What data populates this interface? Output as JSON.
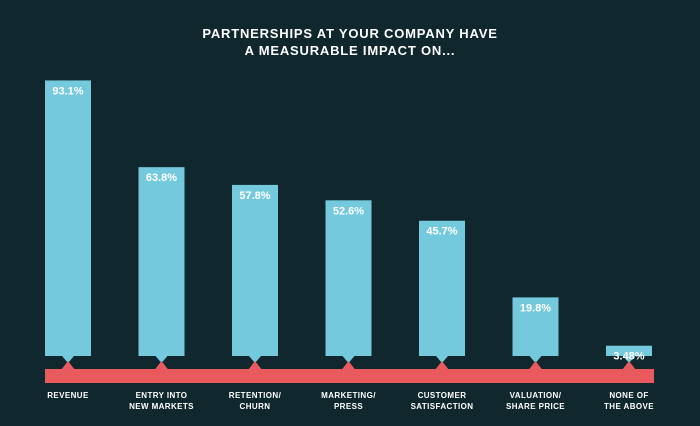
{
  "chart_data": {
    "type": "bar",
    "title_lines": [
      "PARTNERSHIPS AT YOUR COMPANY HAVE",
      "A MEASURABLE IMPACT ON..."
    ],
    "categories": [
      [
        "REVENUE"
      ],
      [
        "ENTRY INTO",
        "NEW MARKETS"
      ],
      [
        "RETENTION/",
        "CHURN"
      ],
      [
        "MARKETING/",
        "PRESS"
      ],
      [
        "CUSTOMER",
        "SATISFACTION"
      ],
      [
        "VALUATION/",
        "SHARE PRICE"
      ],
      [
        "NONE OF",
        "THE ABOVE"
      ]
    ],
    "values": [
      93.1,
      63.8,
      57.8,
      52.6,
      45.7,
      19.8,
      3.48
    ],
    "value_labels": [
      "93.1%",
      "63.8%",
      "57.8%",
      "52.6%",
      "45.7%",
      "19.8%",
      "3.48%"
    ],
    "ylim": [
      0,
      100
    ],
    "grid": false,
    "colors": {
      "background": "#10272e",
      "bar": "#74c9dc",
      "baseline": "#e95a5e",
      "text": "#ffffff"
    }
  }
}
